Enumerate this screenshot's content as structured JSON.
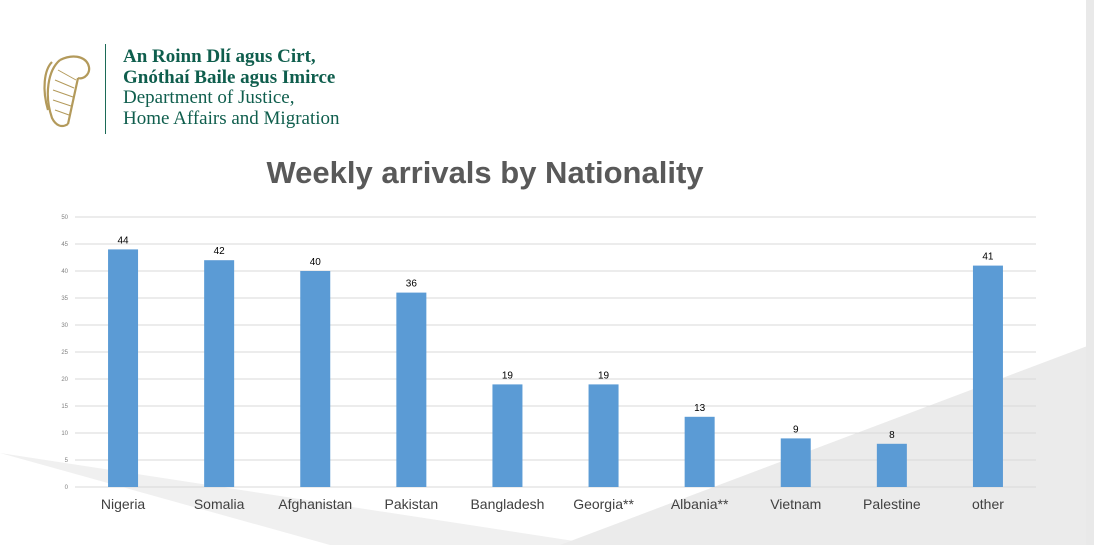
{
  "header": {
    "line1": "An Roinn Dlí agus Cirt,",
    "line2": "Gnóthaí Baile agus Imirce",
    "line3": "Department of Justice,",
    "line4": "Home Affairs and Migration"
  },
  "colors": {
    "bar": "#5b9bd5",
    "brand": "#0f5e4d",
    "title": "#595959",
    "grid": "#d9d9d9"
  },
  "chart_data": {
    "type": "bar",
    "title": "Weekly arrivals by Nationality",
    "categories": [
      "Nigeria",
      "Somalia",
      "Afghanistan",
      "Pakistan",
      "Bangladesh",
      "Georgia**",
      "Albania**",
      "Vietnam",
      "Palestine",
      "other"
    ],
    "values": [
      44,
      42,
      40,
      36,
      19,
      19,
      13,
      9,
      8,
      41
    ],
    "yticks": [
      0,
      5,
      10,
      15,
      20,
      25,
      30,
      35,
      40,
      45,
      50
    ],
    "ylim": [
      0,
      50
    ],
    "grid": true,
    "data_labels": true
  }
}
